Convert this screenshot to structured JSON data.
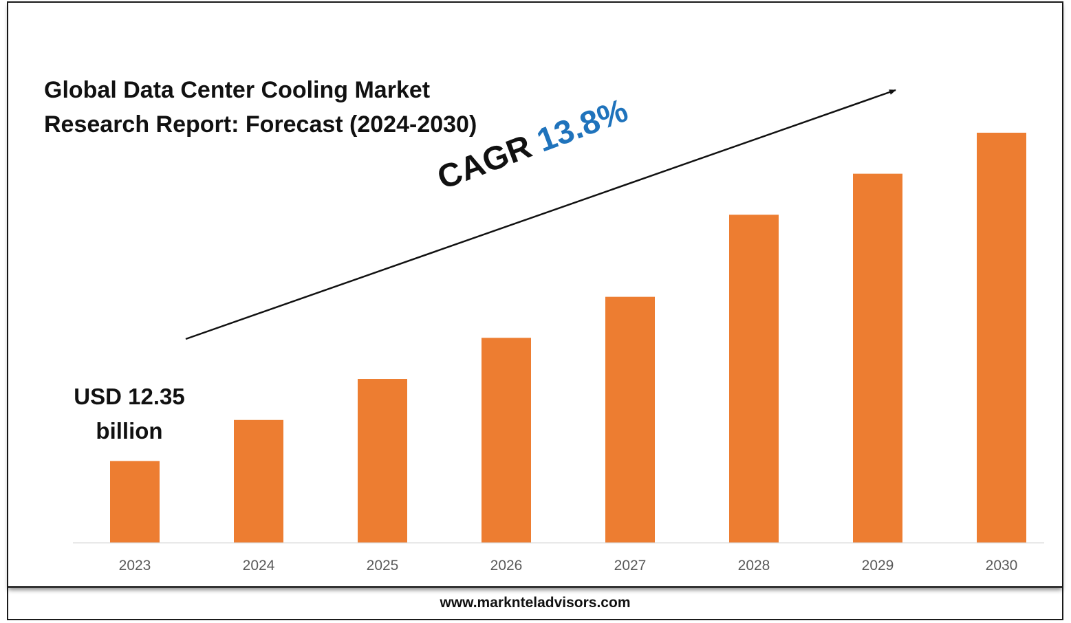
{
  "title_lines": [
    "Global Data Center Cooling Market",
    "Research Report: Forecast (2024-2030)"
  ],
  "annotations": {
    "start_value_lines": [
      "USD 12.35",
      "billion"
    ],
    "cagr_label": "CAGR",
    "cagr_value": "13.8%"
  },
  "footer": {
    "website": "www.marknteladvisors.com"
  },
  "colors": {
    "bar": "#ed7d31",
    "cagr": "#1f73bc",
    "axis": "#d9d9d9",
    "tick_label": "#595959"
  },
  "chart_data": {
    "type": "bar",
    "title": "Global Data Center Cooling Market Research Report: Forecast (2024-2030)",
    "categories": [
      "2023",
      "2024",
      "2025",
      "2026",
      "2027",
      "2028",
      "2029",
      "2030"
    ],
    "values": [
      12.35,
      18.56,
      24.78,
      31.0,
      37.21,
      49.64,
      55.85,
      62.06
    ],
    "data_labels": {
      "2023": "USD 12.35 billion"
    },
    "xlabel": "",
    "ylabel": "",
    "ylim": [
      0,
      65
    ],
    "grid": false,
    "legend": "none",
    "annotations": [
      "CAGR 13.8%"
    ]
  }
}
